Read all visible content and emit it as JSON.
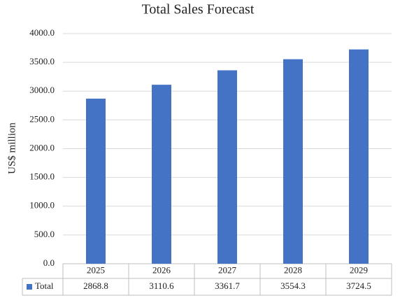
{
  "chart_data": {
    "type": "bar",
    "title": "Total Sales Forecast",
    "y_label": "US$ million",
    "categories": [
      "2025",
      "2026",
      "2027",
      "2028",
      "2029"
    ],
    "series": [
      {
        "name": "Total",
        "color": "#4472c4",
        "values": [
          2868.8,
          3110.6,
          3361.7,
          3554.3,
          3724.5
        ]
      }
    ],
    "ylim": [
      0,
      4000
    ],
    "yticks": [
      {
        "value": 0,
        "label": "0.0"
      },
      {
        "value": 500,
        "label": "500.0"
      },
      {
        "value": 1000,
        "label": "1000.0"
      },
      {
        "value": 1500,
        "label": "1500.0"
      },
      {
        "value": 2000,
        "label": "2000.0"
      },
      {
        "value": 2500,
        "label": "2500.0"
      },
      {
        "value": 3000,
        "label": "3000.0"
      },
      {
        "value": 3500,
        "label": "3500.0"
      },
      {
        "value": 4000,
        "label": "4000.0"
      }
    ],
    "grid": true,
    "data_table": true
  }
}
